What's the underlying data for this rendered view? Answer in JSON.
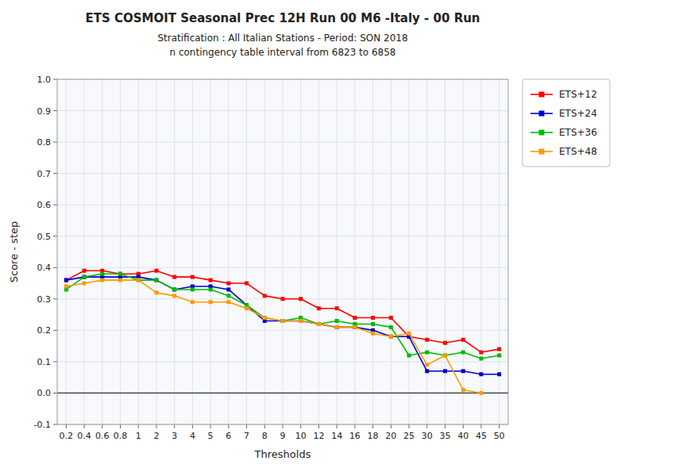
{
  "chart_data": {
    "type": "line",
    "title": "ETS  COSMOIT Seasonal Prec 12H Run 00 M6 -Italy - 00 Run",
    "subtitle": [
      "Stratification :  All Italian Stations - Period:  SON 2018",
      "n contingency table interval from 6823 to 6858"
    ],
    "x_label": "Thresholds",
    "y_label": "Score - step",
    "categories": [
      "0.2",
      "0.4",
      "0.6",
      "0.8",
      "1",
      "2",
      "3",
      "4",
      "5",
      "6",
      "7",
      "8",
      "9",
      "10",
      "12",
      "14",
      "16",
      "18",
      "20",
      "25",
      "30",
      "35",
      "40",
      "45",
      "50"
    ],
    "series": [
      {
        "name": "ETS+12",
        "color": "#ff0000",
        "values": [
          0.36,
          0.39,
          0.39,
          0.38,
          0.38,
          0.39,
          0.37,
          0.37,
          0.36,
          0.35,
          0.35,
          0.31,
          0.3,
          0.3,
          0.27,
          0.27,
          0.24,
          0.24,
          0.24,
          0.18,
          0.17,
          0.16,
          0.17,
          0.13,
          0.14
        ]
      },
      {
        "name": "ETS+24",
        "color": "#0000cc",
        "values": [
          0.36,
          0.37,
          0.37,
          0.37,
          0.37,
          0.36,
          0.33,
          0.34,
          0.34,
          0.33,
          0.28,
          0.23,
          0.23,
          0.23,
          0.22,
          0.21,
          0.21,
          0.2,
          0.18,
          0.18,
          0.07,
          0.07,
          0.07,
          0.06,
          0.06
        ]
      },
      {
        "name": "ETS+36",
        "color": "#00bb00",
        "values": [
          0.33,
          0.37,
          0.38,
          0.38,
          0.36,
          0.36,
          0.33,
          0.33,
          0.33,
          0.31,
          0.28,
          0.24,
          0.23,
          0.24,
          0.22,
          0.23,
          0.22,
          0.22,
          0.21,
          0.12,
          0.13,
          0.12,
          0.13,
          0.11,
          0.12
        ]
      },
      {
        "name": "ETS+48",
        "color": "#ff9900",
        "values": [
          0.34,
          0.35,
          0.36,
          0.36,
          0.36,
          0.32,
          0.31,
          0.29,
          0.29,
          0.29,
          0.27,
          0.24,
          0.23,
          0.23,
          0.22,
          0.21,
          0.21,
          0.19,
          0.18,
          0.19,
          0.09,
          0.12,
          0.01,
          0.0,
          null
        ]
      }
    ],
    "ylim": [
      -0.1,
      1.0
    ],
    "yticks": [
      -0.1,
      {
        "value": 0.0,
        "label": "0.0"
      },
      0.1,
      0.2,
      0.3,
      0.4,
      0.5,
      0.6,
      0.7,
      0.8,
      0.9,
      {
        "value": 1.0,
        "label": "1.0"
      }
    ],
    "grid": true,
    "legend": "right",
    "marker": "square"
  }
}
